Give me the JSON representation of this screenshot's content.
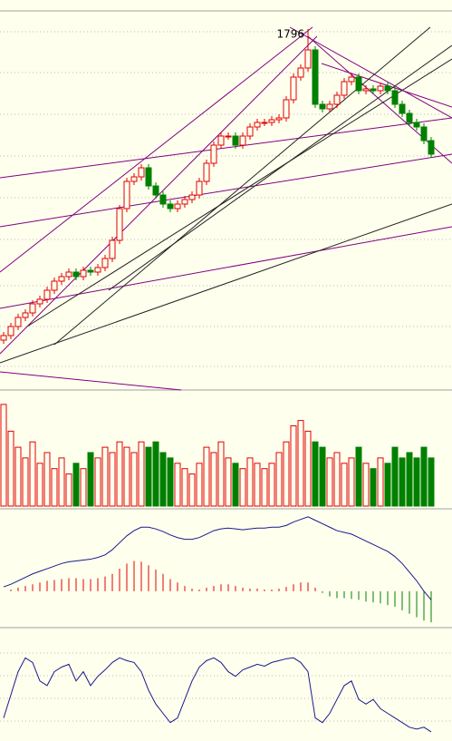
{
  "chart_data": {
    "type": "candlestick",
    "annotation": "1796",
    "ylim": [
      1000,
      1860
    ],
    "up_color": "#e00000",
    "down_color": "#008000",
    "line_color": "#1a1a8c",
    "signal_color": "#f08c00",
    "open": [
      1110,
      1120,
      1140,
      1160,
      1170,
      1190,
      1200,
      1220,
      1240,
      1250,
      1260,
      1250,
      1264,
      1260,
      1270,
      1290,
      1330,
      1400,
      1460,
      1470,
      1490,
      1450,
      1430,
      1410,
      1400,
      1410,
      1420,
      1430,
      1460,
      1500,
      1540,
      1560,
      1560,
      1540,
      1560,
      1580,
      1590,
      1590,
      1596,
      1600,
      1640,
      1690,
      1710,
      1750,
      1630,
      1620,
      1630,
      1650,
      1680,
      1690,
      1660,
      1664,
      1660,
      1670,
      1660,
      1630,
      1610,
      1590,
      1580,
      1550
    ],
    "high": [
      1128,
      1148,
      1168,
      1178,
      1198,
      1208,
      1228,
      1248,
      1258,
      1268,
      1268,
      1272,
      1272,
      1278,
      1298,
      1338,
      1408,
      1468,
      1478,
      1498,
      1498,
      1458,
      1438,
      1418,
      1418,
      1428,
      1438,
      1468,
      1508,
      1548,
      1568,
      1568,
      1568,
      1568,
      1588,
      1598,
      1598,
      1604,
      1608,
      1648,
      1698,
      1718,
      1796,
      1758,
      1638,
      1638,
      1658,
      1688,
      1698,
      1698,
      1672,
      1672,
      1678,
      1678,
      1668,
      1638,
      1618,
      1598,
      1588,
      1558
    ],
    "low": [
      1102,
      1112,
      1132,
      1152,
      1162,
      1182,
      1192,
      1212,
      1232,
      1242,
      1242,
      1242,
      1252,
      1252,
      1262,
      1282,
      1322,
      1392,
      1452,
      1462,
      1442,
      1422,
      1402,
      1392,
      1392,
      1402,
      1412,
      1422,
      1452,
      1492,
      1532,
      1552,
      1532,
      1532,
      1552,
      1572,
      1582,
      1582,
      1588,
      1592,
      1632,
      1682,
      1702,
      1622,
      1612,
      1612,
      1622,
      1642,
      1672,
      1652,
      1652,
      1652,
      1652,
      1652,
      1622,
      1602,
      1582,
      1572,
      1542,
      1512
    ],
    "close": [
      1120,
      1140,
      1160,
      1170,
      1190,
      1200,
      1220,
      1240,
      1250,
      1260,
      1250,
      1264,
      1260,
      1270,
      1290,
      1330,
      1400,
      1460,
      1470,
      1490,
      1450,
      1430,
      1410,
      1400,
      1410,
      1420,
      1430,
      1460,
      1500,
      1540,
      1560,
      1560,
      1540,
      1560,
      1580,
      1590,
      1590,
      1596,
      1600,
      1640,
      1690,
      1710,
      1750,
      1630,
      1620,
      1630,
      1650,
      1680,
      1690,
      1660,
      1664,
      1660,
      1670,
      1660,
      1630,
      1610,
      1590,
      1580,
      1550,
      1520
    ],
    "volume": {
      "ylim": [
        0,
        100
      ],
      "values": [
        95,
        70,
        55,
        45,
        60,
        40,
        50,
        35,
        45,
        30,
        40,
        35,
        50,
        45,
        55,
        50,
        60,
        55,
        50,
        60,
        55,
        60,
        50,
        45,
        40,
        35,
        30,
        40,
        55,
        50,
        60,
        45,
        40,
        35,
        45,
        40,
        35,
        40,
        50,
        60,
        75,
        80,
        70,
        60,
        55,
        45,
        50,
        40,
        45,
        55,
        40,
        35,
        45,
        40,
        55,
        45,
        50,
        45,
        55,
        45
      ]
    },
    "macd": {
      "ylim": [
        -40,
        90
      ],
      "hist": [
        0,
        2,
        4,
        6,
        8,
        10,
        12,
        13,
        14,
        15,
        15,
        14,
        14,
        15,
        17,
        20,
        26,
        32,
        35,
        34,
        30,
        25,
        20,
        14,
        10,
        6,
        3,
        2,
        4,
        6,
        8,
        8,
        6,
        4,
        3,
        3,
        2,
        2,
        3,
        5,
        8,
        10,
        10,
        4,
        -2,
        -6,
        -8,
        -8,
        -9,
        -10,
        -12,
        -13,
        -14,
        -16,
        -18,
        -22,
        -26,
        -30,
        -34,
        -36
      ],
      "dif": [
        5,
        8,
        12,
        16,
        20,
        23,
        26,
        29,
        32,
        34,
        35,
        36,
        37,
        39,
        42,
        48,
        56,
        64,
        70,
        74,
        74,
        72,
        69,
        65,
        62,
        60,
        60,
        62,
        66,
        70,
        72,
        73,
        72,
        71,
        72,
        73,
        73,
        74,
        74,
        76,
        80,
        83,
        86,
        82,
        78,
        74,
        70,
        68,
        66,
        62,
        58,
        54,
        50,
        46,
        40,
        32,
        22,
        12,
        0,
        -10
      ]
    },
    "kdj": {
      "ylim": [
        0,
        100
      ],
      "k": [
        20,
        45,
        70,
        85,
        80,
        60,
        55,
        70,
        75,
        78,
        60,
        70,
        55,
        65,
        72,
        80,
        85,
        82,
        80,
        70,
        50,
        35,
        25,
        15,
        20,
        40,
        60,
        75,
        82,
        85,
        80,
        70,
        65,
        72,
        75,
        78,
        76,
        80,
        82,
        84,
        85,
        80,
        70,
        20,
        15,
        25,
        40,
        55,
        60,
        40,
        35,
        40,
        30,
        25,
        20,
        15,
        10,
        8,
        10,
        5
      ]
    }
  }
}
